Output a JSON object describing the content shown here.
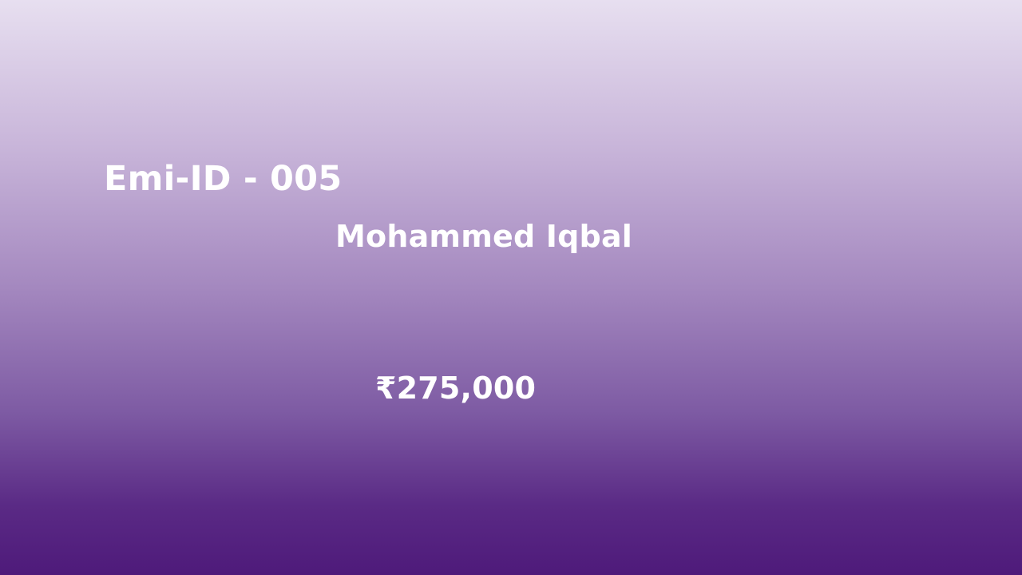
{
  "card": {
    "emi_id": "Emi-ID - 005",
    "customer_name": "Mohammed Iqbal",
    "amount": "₹275,000"
  },
  "colors": {
    "gradient_top": "#e7dff0",
    "gradient_bottom": "#4e1a7a",
    "text": "#ffffff"
  }
}
